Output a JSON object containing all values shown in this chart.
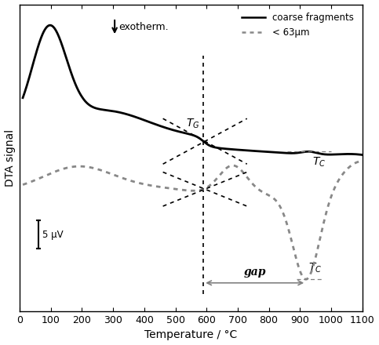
{
  "xlim": [
    0,
    1100
  ],
  "xlabel": "Temperature / °C",
  "ylabel": "DTA signal",
  "scale_bar_label": "5 μV",
  "background_color": "#ffffff",
  "coarse_color": "#000000",
  "fine_color": "#888888",
  "TG_temp": 590,
  "TC_coarse_temp": 930,
  "TC_fine_temp": 920,
  "gap_label": "gap",
  "exotherm_label": "exotherm.",
  "legend_coarse": "coarse fragments",
  "legend_fine": "< 63μm",
  "ylim": [
    -13,
    14
  ]
}
